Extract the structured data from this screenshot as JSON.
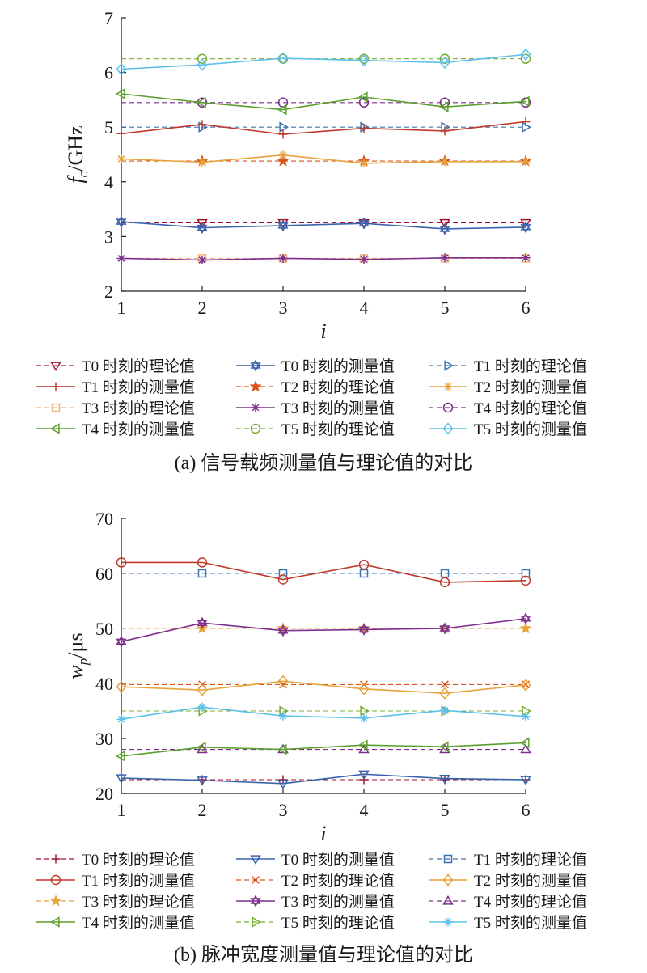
{
  "chart_data": [
    {
      "type": "line",
      "caption": "(a) 信号载频测量值与理论值的对比",
      "ylabel_var": "f",
      "ylabel_sub": "c",
      "ylabel_unit": "/GHz",
      "xlabel": "i",
      "x": [
        1,
        2,
        3,
        4,
        5,
        6
      ],
      "xlim": [
        1,
        6
      ],
      "ylim": [
        2,
        7
      ],
      "yticks": [
        2,
        3,
        4,
        5,
        6,
        7
      ],
      "grid": false,
      "legend_position": "bottom",
      "series": [
        {
          "name": "T0 时刻的理论值",
          "kind": "theory",
          "color": "#a2142f",
          "marker": "triangle-down",
          "values": [
            3.25,
            3.25,
            3.25,
            3.25,
            3.25,
            3.25
          ]
        },
        {
          "name": "T0 时刻的测量值",
          "kind": "measured",
          "color": "#3a63ad",
          "marker": "hexagram",
          "values": [
            3.27,
            3.16,
            3.2,
            3.24,
            3.14,
            3.17
          ]
        },
        {
          "name": "T1 时刻的理论值",
          "kind": "theory",
          "color": "#3a75b0",
          "marker": "triangle-right",
          "values": [
            5.0,
            5.0,
            5.0,
            5.0,
            5.0,
            5.0
          ]
        },
        {
          "name": "T1 时刻的测量值",
          "kind": "measured",
          "color": "#c0392b",
          "marker": "plus",
          "values": [
            4.88,
            5.05,
            4.87,
            4.98,
            4.93,
            5.1
          ]
        },
        {
          "name": "T2 时刻的理论值",
          "kind": "theory",
          "color": "#d95319",
          "marker": "star",
          "values": [
            4.38,
            4.38,
            4.38,
            4.38,
            4.38,
            4.38
          ]
        },
        {
          "name": "T2 时刻的测量值",
          "kind": "measured",
          "color": "#e8a33d",
          "marker": "asterisk",
          "values": [
            4.42,
            4.36,
            4.49,
            4.34,
            4.37,
            4.37
          ]
        },
        {
          "name": "T3 时刻的理论值",
          "kind": "theory",
          "color": "#f0b27a",
          "marker": "square",
          "values": [
            2.6,
            2.6,
            2.6,
            2.6,
            2.6,
            2.6
          ]
        },
        {
          "name": "T3 时刻的测量值",
          "kind": "measured",
          "color": "#7e2f8e",
          "marker": "asterisk",
          "values": [
            2.6,
            2.57,
            2.6,
            2.58,
            2.61,
            2.61
          ]
        },
        {
          "name": "T4 时刻的理论值",
          "kind": "theory",
          "color": "#7e2f8e",
          "marker": "circle",
          "values": [
            5.45,
            5.45,
            5.45,
            5.45,
            5.45,
            5.45
          ]
        },
        {
          "name": "T4 时刻的测量值",
          "kind": "measured",
          "color": "#5aa02c",
          "marker": "triangle-left",
          "values": [
            5.61,
            5.45,
            5.32,
            5.55,
            5.37,
            5.47
          ]
        },
        {
          "name": "T5 时刻的理论值",
          "kind": "theory",
          "color": "#77ac30",
          "marker": "circle",
          "values": [
            6.25,
            6.25,
            6.25,
            6.25,
            6.25,
            6.25
          ]
        },
        {
          "name": "T5 时刻的测量值",
          "kind": "measured",
          "color": "#5bc0eb",
          "marker": "diamond",
          "values": [
            6.06,
            6.14,
            6.26,
            6.22,
            6.18,
            6.33
          ]
        }
      ]
    },
    {
      "type": "line",
      "caption": "(b) 脉冲宽度测量值与理论值的对比",
      "ylabel_var": "w",
      "ylabel_sub": "p",
      "ylabel_unit": "/μs",
      "xlabel": "i",
      "x": [
        1,
        2,
        3,
        4,
        5,
        6
      ],
      "xlim": [
        1,
        6
      ],
      "ylim": [
        20,
        70
      ],
      "yticks": [
        20,
        30,
        40,
        50,
        60,
        70
      ],
      "grid": false,
      "legend_position": "bottom",
      "series": [
        {
          "name": "T0 时刻的理论值",
          "kind": "theory",
          "color": "#a2142f",
          "marker": "plus",
          "values": [
            22.5,
            22.5,
            22.5,
            22.5,
            22.5,
            22.5
          ]
        },
        {
          "name": "T0 时刻的测量值",
          "kind": "measured",
          "color": "#3a63ad",
          "marker": "triangle-down",
          "values": [
            22.8,
            22.4,
            21.8,
            23.5,
            22.7,
            22.5
          ]
        },
        {
          "name": "T1 时刻的理论值",
          "kind": "theory",
          "color": "#3a75b0",
          "marker": "square",
          "values": [
            60,
            60,
            60,
            60,
            60,
            60
          ]
        },
        {
          "name": "T1 时刻的测量值",
          "kind": "measured",
          "color": "#c0392b",
          "marker": "circle",
          "values": [
            62,
            62,
            58.9,
            61.6,
            58.4,
            58.7
          ]
        },
        {
          "name": "T2 时刻的理论值",
          "kind": "theory",
          "color": "#d95319",
          "marker": "cross",
          "values": [
            39.8,
            39.8,
            39.8,
            39.8,
            39.8,
            39.8
          ]
        },
        {
          "name": "T2 时刻的测量值",
          "kind": "measured",
          "color": "#e8a33d",
          "marker": "diamond",
          "values": [
            39.4,
            38.8,
            40.4,
            39.0,
            38.2,
            39.7
          ]
        },
        {
          "name": "T3 时刻的理论值",
          "kind": "theory",
          "color": "#e8a33d",
          "marker": "star",
          "values": [
            50,
            50,
            50,
            50,
            50,
            50
          ]
        },
        {
          "name": "T3 时刻的测量值",
          "kind": "measured",
          "color": "#7e2f8e",
          "marker": "hexagram",
          "values": [
            47.6,
            51,
            49.6,
            49.8,
            50,
            51.8
          ]
        },
        {
          "name": "T4 时刻的理论值",
          "kind": "theory",
          "color": "#7e2f8e",
          "marker": "triangle-up",
          "values": [
            28,
            28,
            28,
            28,
            28,
            28
          ]
        },
        {
          "name": "T4 时刻的测量值",
          "kind": "measured",
          "color": "#5aa02c",
          "marker": "triangle-left",
          "values": [
            26.8,
            28.4,
            28,
            28.8,
            28.5,
            29.2
          ]
        },
        {
          "name": "T5 时刻的理论值",
          "kind": "theory",
          "color": "#77ac30",
          "marker": "triangle-right",
          "values": [
            35,
            35,
            35,
            35,
            35,
            35
          ]
        },
        {
          "name": "T5 时刻的测量值",
          "kind": "measured",
          "color": "#5bc0eb",
          "marker": "asterisk",
          "values": [
            33.5,
            35.7,
            34.1,
            33.7,
            35.1,
            34
          ]
        }
      ]
    }
  ]
}
